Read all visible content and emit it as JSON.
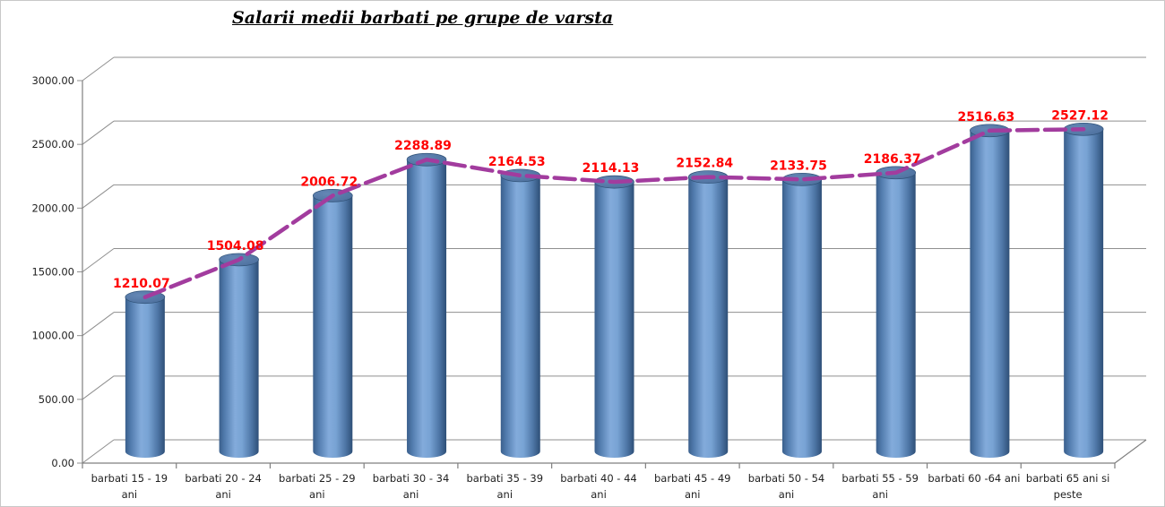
{
  "page": {
    "background": "#ffffff",
    "border_color": "#c8c8c8"
  },
  "chart_data": {
    "type": "bar",
    "subtype": "3d-cylinder-column-with-line-overlay",
    "title": "Salarii medii barbati pe grupe de varsta",
    "categories": [
      "barbati 15 - 19 ani",
      "barbati 20 - 24 ani",
      "barbati 25 - 29 ani",
      "barbati 30 - 34 ani",
      "barbati 35 - 39 ani",
      "barbati 40 - 44 ani",
      "barbati 45 - 49 ani",
      "barbati 50 - 54 ani",
      "barbati 55 - 59 ani",
      "barbati 60 -64 ani",
      "barbati 65 ani si peste"
    ],
    "category_label_lines": [
      [
        "barbati 15 - 19",
        "ani"
      ],
      [
        "barbati 20 - 24",
        "ani"
      ],
      [
        "barbati 25 - 29",
        "ani"
      ],
      [
        "barbati 30 - 34",
        "ani"
      ],
      [
        "barbati 35 - 39",
        "ani"
      ],
      [
        "barbati 40 - 44",
        "ani"
      ],
      [
        "barbati 45 - 49",
        "ani"
      ],
      [
        "barbati 50 - 54",
        "ani"
      ],
      [
        "barbati 55 - 59",
        "ani"
      ],
      [
        "barbati 60 -64 ani"
      ],
      [
        "barbati 65 ani si",
        "peste"
      ]
    ],
    "series": [
      {
        "name": "salariu-mediu-cilindri",
        "type": "cylinder-bar",
        "values": [
          1210.07,
          1504.08,
          2006.72,
          2288.89,
          2164.53,
          2114.13,
          2152.84,
          2133.75,
          2186.37,
          2516.63,
          2527.12
        ]
      },
      {
        "name": "salariu-mediu-linie",
        "type": "line",
        "values": [
          1210.07,
          1504.08,
          2006.72,
          2288.89,
          2164.53,
          2114.13,
          2152.84,
          2133.75,
          2186.37,
          2516.63,
          2527.12
        ]
      }
    ],
    "data_labels": [
      "1210.07",
      "1504.08",
      "2006.72",
      "2288.89",
      "2164.53",
      "2114.13",
      "2152.84",
      "2133.75",
      "2186.37",
      "2516.63",
      "2527.12"
    ],
    "xlabel": "",
    "ylabel": "",
    "ylim": [
      0,
      3000
    ],
    "ytick_step": 500,
    "ytick_labels": [
      "0.00",
      "500.00",
      "1000.00",
      "1500.00",
      "2000.00",
      "2500.00",
      "3000.00"
    ],
    "grid": true,
    "legend": "none",
    "colors": {
      "bar_edge_dark": "#3a5f8c",
      "bar_mid_light": "#83abdb",
      "bar_shadow_dark": "#2e4f77",
      "bar_top_face": "#4c6f9d",
      "line": "#a23c9e",
      "data_label": "#ff0000",
      "grid": "#8f8f8f",
      "axis": "#7f7f7f",
      "tick_text": "#1f1f1f"
    }
  }
}
